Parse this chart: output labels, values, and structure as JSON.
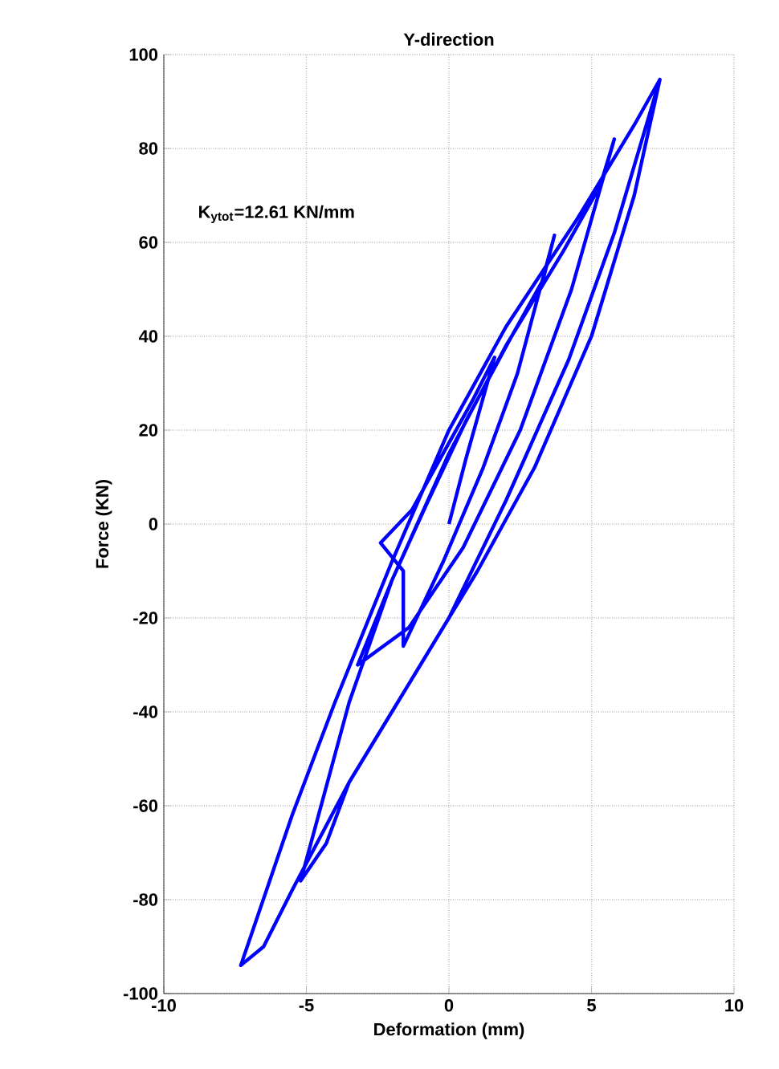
{
  "chart_data": {
    "type": "line",
    "title": "Y-direction",
    "xlabel": "Deformation (mm)",
    "ylabel": "Force (KN)",
    "annotations": [
      "K$_{ytot}$=12.61 KN/mm"
    ],
    "xlim": [
      -10,
      10
    ],
    "ylim": [
      -100,
      100
    ],
    "xticks": [
      -10,
      -5,
      0,
      5,
      10
    ],
    "yticks": [
      -100,
      -80,
      -60,
      -40,
      -20,
      0,
      20,
      40,
      60,
      80,
      100
    ],
    "grid": true,
    "marker": "none",
    "line_style": "solid",
    "series": [
      {
        "color": "#0000ff",
        "x": [
          0,
          0.6,
          1.6,
          0.8,
          -0.3,
          -1.3,
          -2.4,
          -1.6,
          -1.6,
          -0.2,
          1.2,
          2.4,
          3.7,
          3.3,
          2.2,
          0.6,
          -0.8,
          -2.0,
          -3.2,
          -1.4,
          0.5,
          2.5,
          4.3,
          5.8,
          5.3,
          4.0,
          2.0,
          0,
          -2.0,
          -3.5,
          -5.2,
          -4.3,
          -3.5,
          -2.0,
          0,
          2.0,
          4.2,
          5.8,
          7.4,
          6.5,
          4.5,
          2.0,
          0,
          -2.0,
          -4.0,
          -5.5,
          -7.3,
          -6.5,
          -5.5,
          -3.5,
          -1.0,
          1.0,
          3.0,
          5.0,
          6.5,
          7.4
        ],
        "values": [
          0,
          14,
          35.5,
          26,
          14,
          3,
          -4,
          -10,
          -26,
          -8,
          12,
          32,
          61.5,
          52,
          40,
          22,
          4,
          -12,
          -30,
          -22,
          -5,
          20,
          50,
          82,
          72,
          58,
          38,
          15,
          -12,
          -38,
          -76,
          -68,
          -55,
          -40,
          -20,
          5,
          35,
          62,
          94.7,
          85,
          65,
          42,
          20,
          -8,
          -38,
          -62,
          -94,
          -90,
          -78,
          -55,
          -30,
          -10,
          12,
          40,
          70,
          94.7
        ]
      }
    ]
  }
}
